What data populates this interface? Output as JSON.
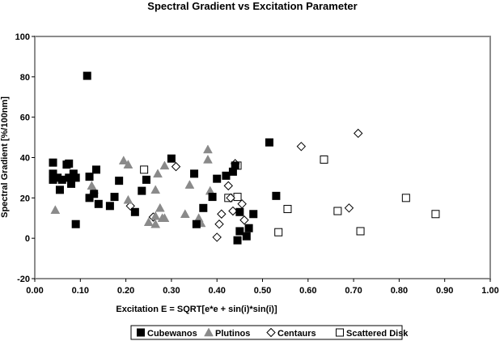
{
  "chart_data": {
    "type": "scatter",
    "title": "Spectral Gradient vs Excitation Parameter",
    "xlabel": "Excitation E = SQRT[e*e + sin(i)*sin(i)]",
    "ylabel": "Spectral Gradient [%/100nm]",
    "xlim": [
      0.0,
      1.0
    ],
    "ylim": [
      -20,
      100
    ],
    "xticks": [
      "0.00",
      "0.10",
      "0.20",
      "0.30",
      "0.40",
      "0.50",
      "0.60",
      "0.70",
      "0.80",
      "0.90",
      "1.00"
    ],
    "yticks": [
      "-20",
      "0",
      "20",
      "40",
      "60",
      "80",
      "100"
    ],
    "grid": false,
    "legend_position": "bottom",
    "series": [
      {
        "name": "Cubewanos",
        "marker": "filled-square",
        "color": "#000000",
        "points": [
          [
            0.04,
            37.5
          ],
          [
            0.04,
            32
          ],
          [
            0.04,
            29
          ],
          [
            0.05,
            30
          ],
          [
            0.055,
            24
          ],
          [
            0.06,
            29
          ],
          [
            0.07,
            36.5
          ],
          [
            0.075,
            37
          ],
          [
            0.075,
            30
          ],
          [
            0.08,
            27
          ],
          [
            0.085,
            32
          ],
          [
            0.09,
            7
          ],
          [
            0.09,
            30
          ],
          [
            0.115,
            80.5
          ],
          [
            0.12,
            30.5
          ],
          [
            0.12,
            20
          ],
          [
            0.13,
            22
          ],
          [
            0.135,
            34
          ],
          [
            0.14,
            17
          ],
          [
            0.165,
            16
          ],
          [
            0.175,
            20.5
          ],
          [
            0.185,
            28.5
          ],
          [
            0.22,
            13
          ],
          [
            0.235,
            23.5
          ],
          [
            0.245,
            29
          ],
          [
            0.3,
            39.5
          ],
          [
            0.35,
            32
          ],
          [
            0.355,
            7
          ],
          [
            0.37,
            15
          ],
          [
            0.39,
            20.5
          ],
          [
            0.4,
            29.5
          ],
          [
            0.42,
            31
          ],
          [
            0.435,
            33
          ],
          [
            0.44,
            36
          ],
          [
            0.445,
            -1
          ],
          [
            0.45,
            3.5
          ],
          [
            0.45,
            13
          ],
          [
            0.465,
            1
          ],
          [
            0.47,
            5
          ],
          [
            0.48,
            12
          ],
          [
            0.515,
            47.5
          ],
          [
            0.53,
            21
          ]
        ]
      },
      {
        "name": "Plutinos",
        "marker": "filled-triangle",
        "color": "#8a8a8a",
        "points": [
          [
            0.045,
            14
          ],
          [
            0.125,
            26
          ],
          [
            0.13,
            24
          ],
          [
            0.195,
            38.5
          ],
          [
            0.205,
            19
          ],
          [
            0.205,
            36.5
          ],
          [
            0.25,
            8
          ],
          [
            0.265,
            7
          ],
          [
            0.265,
            11
          ],
          [
            0.265,
            24
          ],
          [
            0.27,
            32
          ],
          [
            0.275,
            15
          ],
          [
            0.28,
            10
          ],
          [
            0.285,
            10
          ],
          [
            0.285,
            36
          ],
          [
            0.33,
            12
          ],
          [
            0.34,
            26.5
          ],
          [
            0.36,
            10
          ],
          [
            0.365,
            7.5
          ],
          [
            0.38,
            44
          ],
          [
            0.38,
            39
          ],
          [
            0.385,
            23.5
          ]
        ]
      },
      {
        "name": "Centaurs",
        "marker": "open-diamond",
        "color": "#000000",
        "points": [
          [
            0.21,
            16
          ],
          [
            0.26,
            10.5
          ],
          [
            0.31,
            35.5
          ],
          [
            0.4,
            0.5
          ],
          [
            0.405,
            7
          ],
          [
            0.41,
            12
          ],
          [
            0.425,
            26
          ],
          [
            0.43,
            20
          ],
          [
            0.435,
            13.5
          ],
          [
            0.44,
            37
          ],
          [
            0.455,
            17
          ],
          [
            0.46,
            9
          ],
          [
            0.585,
            45.5
          ],
          [
            0.69,
            15
          ],
          [
            0.71,
            52
          ]
        ]
      },
      {
        "name": "Scattered Disk",
        "marker": "open-square",
        "color": "#000000",
        "points": [
          [
            0.24,
            34
          ],
          [
            0.425,
            20
          ],
          [
            0.445,
            20.5
          ],
          [
            0.445,
            36
          ],
          [
            0.535,
            3
          ],
          [
            0.555,
            14.5
          ],
          [
            0.635,
            39
          ],
          [
            0.665,
            13.5
          ],
          [
            0.715,
            3.5
          ],
          [
            0.815,
            20
          ],
          [
            0.88,
            12
          ]
        ]
      }
    ]
  }
}
